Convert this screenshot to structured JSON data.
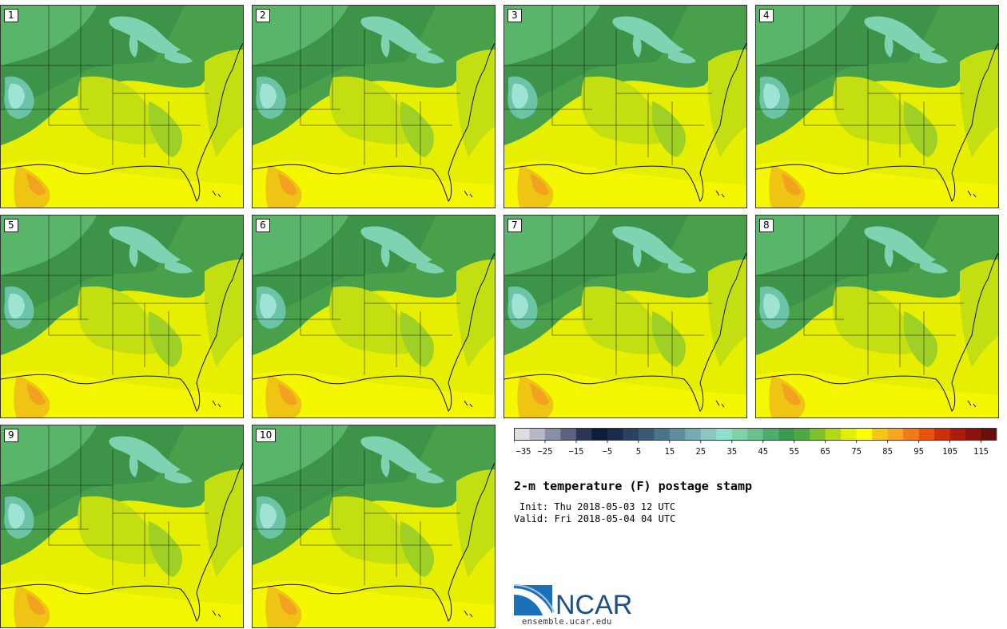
{
  "panels": [
    {
      "label": "1"
    },
    {
      "label": "2"
    },
    {
      "label": "3"
    },
    {
      "label": "4"
    },
    {
      "label": "5"
    },
    {
      "label": "6"
    },
    {
      "label": "7"
    },
    {
      "label": "8"
    },
    {
      "label": "9"
    },
    {
      "label": "10"
    }
  ],
  "colorbar": {
    "colors": [
      "#dcdee4",
      "#b6b8c6",
      "#8a8ea6",
      "#5c6381",
      "#2b3556",
      "#0f1d3d",
      "#1a2a4a",
      "#294261",
      "#3a5a78",
      "#4b748b",
      "#5e8f9c",
      "#74abb0",
      "#8cc8c2",
      "#8ee0cc",
      "#7fd1aa",
      "#6ac08d",
      "#51ab6f",
      "#3e9a52",
      "#4da93f",
      "#7fc12a",
      "#b3d916",
      "#e0ee08",
      "#ffff00",
      "#f6c814",
      "#f7a41e",
      "#f47b13",
      "#ec520a",
      "#cf2f0a",
      "#ad1c0c",
      "#8c140c",
      "#6a0f0a"
    ],
    "ticks": [
      "−35",
      "−25",
      "−15",
      "−5",
      "5",
      "15",
      "25",
      "35",
      "45",
      "55",
      "65",
      "75",
      "85",
      "95",
      "105",
      "115"
    ]
  },
  "title": "2-m temperature (F) postage stamp",
  "init_text": "Init: Thu 2018-05-03 12 UTC",
  "valid_text": "Valid: Fri 2018-05-04 04 UTC",
  "logo": {
    "name": "NCAR",
    "url": "ensemble.ucar.edu"
  }
}
